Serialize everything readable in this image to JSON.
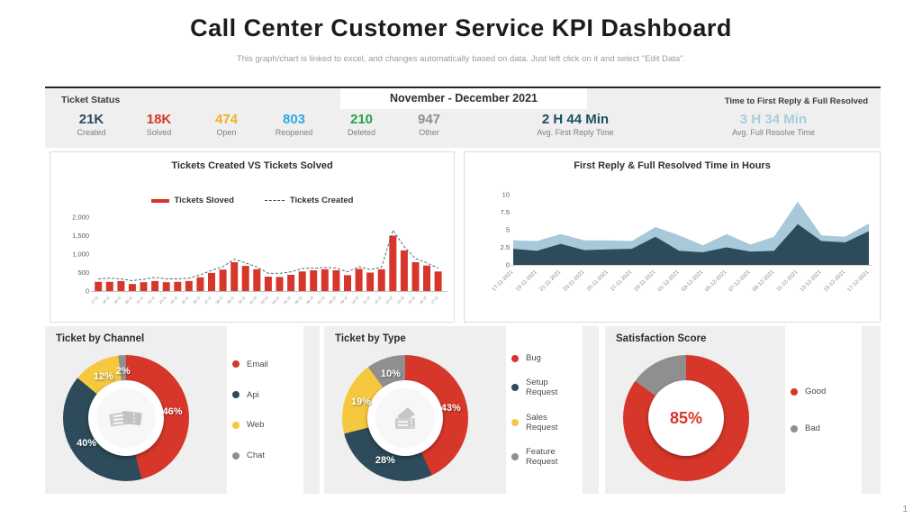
{
  "header": {
    "title": "Call Center Customer Service KPI Dashboard",
    "subtitle": "This graph/chart is linked to excel, and changes automatically based on data. Just left click on it and select \"Edit Data\"."
  },
  "kpi": {
    "section_left": "Ticket  Status",
    "period": "November -  December 2021",
    "section_right": "Time to  First Reply & Full Resolved",
    "stats": [
      {
        "value": "21K",
        "label": "Created",
        "color": "#2e4a5a"
      },
      {
        "value": "18K",
        "label": "Solved",
        "color": "#d7372a"
      },
      {
        "value": "474",
        "label": "Open",
        "color": "#f2b01e"
      },
      {
        "value": "803",
        "label": "Reopened",
        "color": "#2da9e1"
      },
      {
        "value": "210",
        "label": "Deleted",
        "color": "#27a04a"
      },
      {
        "value": "947",
        "label": "Other",
        "color": "#8f8f8f"
      }
    ],
    "times": [
      {
        "value": "2 H 44 Min",
        "label": "Avg.  First Reply Time",
        "color": "#1d4e63"
      },
      {
        "value": "3 H 34 Min",
        "label": "Avg.  Full Resolve Time",
        "color": "#a9cddd"
      }
    ]
  },
  "page_number": "1",
  "chart_data": [
    {
      "id": "tickets_bar",
      "type": "bar",
      "title": "Tickets Created  VS Tickets Solved",
      "legend": [
        {
          "name": "Tickets  Sloved",
          "swatch": "bar",
          "color": "#d7372a"
        },
        {
          "name": "Tickets  Created",
          "swatch": "dash",
          "color": "#2d4b5a"
        }
      ],
      "categories": [
        "17-11",
        "18-11",
        "19-11",
        "20-11",
        "21-11",
        "22-11",
        "23-11",
        "24-11",
        "25-11",
        "26-11",
        "27-11",
        "28-11",
        "29-11",
        "30-11",
        "01-12",
        "02-12",
        "03-12",
        "04-12",
        "05-12",
        "06-12",
        "07-12",
        "08-12",
        "09-12",
        "10-12",
        "11-12",
        "12-12",
        "13-12",
        "14-12",
        "15-12",
        "16-12",
        "17-12"
      ],
      "series": [
        {
          "name": "Tickets Sloved",
          "type": "bar",
          "color": "#d7372a",
          "values": [
            250,
            250,
            270,
            190,
            240,
            270,
            240,
            250,
            270,
            370,
            490,
            580,
            780,
            680,
            590,
            390,
            380,
            440,
            530,
            560,
            590,
            560,
            430,
            600,
            500,
            590,
            1500,
            1100,
            780,
            690,
            530
          ]
        },
        {
          "name": "Tickets Created",
          "type": "dashed-line",
          "color": "#3a5a6e",
          "values": [
            330,
            350,
            330,
            280,
            320,
            370,
            330,
            330,
            350,
            440,
            560,
            660,
            860,
            760,
            650,
            480,
            480,
            520,
            610,
            620,
            640,
            620,
            520,
            660,
            580,
            650,
            1650,
            1200,
            880,
            760,
            620
          ]
        }
      ],
      "ylim": [
        0,
        2000
      ],
      "yticks": [
        "2,000",
        "1,500",
        "1,000",
        "500",
        "0"
      ]
    },
    {
      "id": "reply_area",
      "type": "area",
      "title": "First Reply & Full Resolved Time in Hours",
      "x": [
        "17-11-2021",
        "19-11-2021",
        "21-11-2021",
        "23-11-2021",
        "25-11-2021",
        "27-11-2021",
        "29-11-2021",
        "01-12-2021",
        "03-12-2021",
        "05-12-2021",
        "07-12-2021",
        "09-12-2021",
        "11-12-2021",
        "13-12-2021",
        "15-12-2021",
        "17-12-2021"
      ],
      "series": [
        {
          "name": "Full Resolved Time",
          "color": "#a7c9d9",
          "values": [
            3.5,
            3.4,
            4.4,
            3.5,
            3.5,
            3.4,
            5.4,
            4.2,
            2.8,
            4.4,
            2.9,
            4.0,
            9.0,
            4.2,
            4.0,
            5.9
          ]
        },
        {
          "name": "First Reply Time",
          "color": "#2c4c5c",
          "values": [
            2.3,
            2.0,
            3.0,
            2.1,
            2.2,
            2.3,
            4.0,
            2.0,
            1.8,
            2.5,
            1.9,
            2.0,
            5.8,
            3.4,
            3.2,
            4.8
          ]
        }
      ],
      "ylim": [
        0,
        10
      ],
      "yticks": [
        "10",
        "7.5",
        "5",
        "2.5",
        "0"
      ]
    },
    {
      "id": "channel_donut",
      "type": "pie",
      "title": "Ticket by Channel",
      "center": "tickets-icon",
      "slices": [
        {
          "label": "Email",
          "value": 46,
          "pct": "46%",
          "color": "#d7372a"
        },
        {
          "label": "Api",
          "value": 40,
          "pct": "40%",
          "color": "#2d4b5a"
        },
        {
          "label": "Web",
          "value": 12,
          "pct": "12%",
          "color": "#f6c83f"
        },
        {
          "label": "Chat",
          "value": 2,
          "pct": "2%",
          "color": "#8f8f8f"
        }
      ]
    },
    {
      "id": "type_donut",
      "type": "pie",
      "title": "Ticket by Type",
      "center": "tickets-icon",
      "slices": [
        {
          "label": "Bug",
          "value": 43,
          "pct": "43%",
          "color": "#d7372a"
        },
        {
          "label": "Setup Request",
          "value": 28,
          "pct": "28%",
          "color": "#2d4b5a"
        },
        {
          "label": "Sales Request",
          "value": 19,
          "pct": "19%",
          "color": "#f6c83f"
        },
        {
          "label": "Feature Request",
          "value": 10,
          "pct": "10%",
          "color": "#8f8f8f"
        }
      ]
    },
    {
      "id": "satisfaction_donut",
      "type": "pie",
      "title": "Satisfaction Score",
      "center_label": "85%",
      "show_ring_labels": false,
      "slices": [
        {
          "label": "Good",
          "value": 85,
          "color": "#d7372a"
        },
        {
          "label": "Bad",
          "value": 15,
          "color": "#8f8f8f"
        }
      ]
    }
  ]
}
